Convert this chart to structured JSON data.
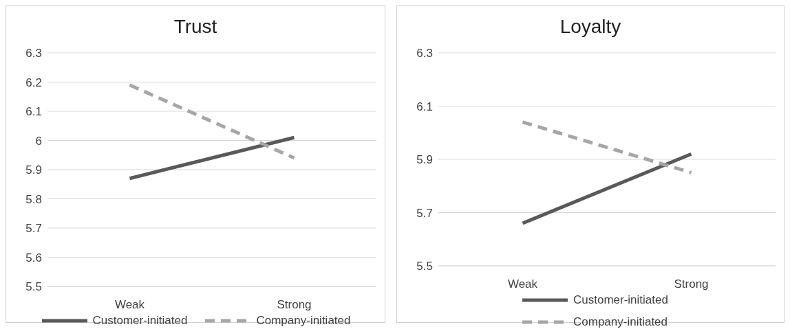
{
  "chart_data": [
    {
      "type": "line",
      "title": "Trust",
      "categories": [
        "Weak",
        "Strong"
      ],
      "series": [
        {
          "name": "Customer-initiated",
          "color": "#595959",
          "line_style": "solid",
          "values": [
            5.87,
            6.01
          ]
        },
        {
          "name": "Company-initiated",
          "color": "#a6a6a6",
          "line_style": "dashed",
          "values": [
            6.19,
            5.94
          ]
        }
      ],
      "ylim": [
        5.5,
        6.3
      ],
      "yticks": [
        5.5,
        5.6,
        5.7,
        5.8,
        5.9,
        {
          "value": 6,
          "label": "6"
        },
        6.1,
        6.2,
        6.3
      ],
      "grid": "y",
      "legend": "bottom"
    },
    {
      "type": "line",
      "title": "Loyalty",
      "categories": [
        "Weak",
        "Strong"
      ],
      "series": [
        {
          "name": "Customer-initiated",
          "color": "#595959",
          "line_style": "solid",
          "values": [
            5.66,
            5.92
          ]
        },
        {
          "name": "Company-initiated",
          "color": "#a6a6a6",
          "line_style": "dashed",
          "values": [
            6.04,
            5.85
          ]
        }
      ],
      "ylim": [
        5.5,
        6.3
      ],
      "yticks": [
        5.5,
        5.7,
        5.9,
        6.1,
        6.3
      ],
      "grid": "y",
      "legend": "bottom"
    }
  ]
}
